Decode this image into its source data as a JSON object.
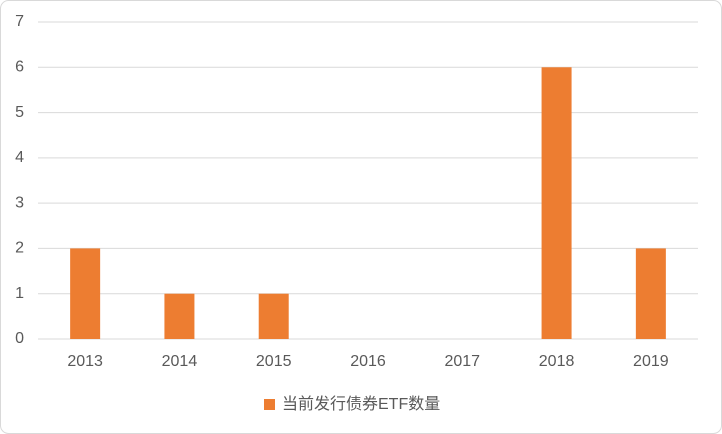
{
  "chart_data": {
    "type": "bar",
    "categories": [
      "2013",
      "2014",
      "2015",
      "2016",
      "2017",
      "2018",
      "2019"
    ],
    "series": [
      {
        "name": "当前发行债券ETF数量",
        "color": "#ed7d31",
        "values": [
          2,
          1,
          1,
          0,
          0,
          6,
          2
        ]
      }
    ],
    "ylim": [
      0,
      7
    ],
    "yticks": [
      0,
      1,
      2,
      3,
      4,
      5,
      6,
      7
    ],
    "grid": true,
    "legend": "bottom"
  }
}
